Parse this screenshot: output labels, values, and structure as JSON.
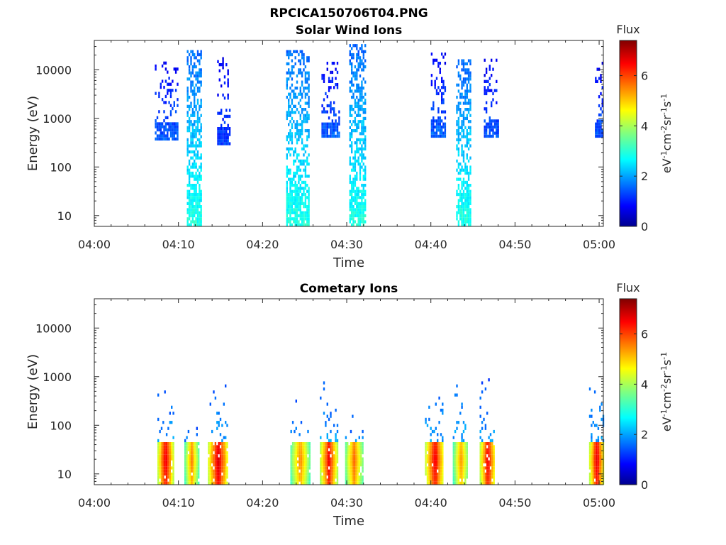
{
  "figure": {
    "title": "RPCICA150706T04.PNG"
  },
  "chart_data": [
    {
      "type": "heatmap",
      "title": "Solar Wind Ions",
      "xlabel": "Time",
      "ylabel": "Energy (eV)",
      "x_ticks": [
        "04:00",
        "04:10",
        "04:20",
        "04:30",
        "04:40",
        "04:50",
        "05:00"
      ],
      "y_ticks": [
        "10",
        "100",
        "1000",
        "10000"
      ],
      "xlim_minutes_after_04_00": [
        0,
        60.5
      ],
      "ylim_eV": [
        6,
        40000
      ],
      "y_scale": "log",
      "colorbar": {
        "title": "Flux",
        "label": "eV-1cm-2sr-1s-1",
        "ticks": [
          "0",
          "2",
          "4",
          "6"
        ],
        "range": [
          0,
          7.4
        ],
        "colormap": "jet"
      },
      "bursts": [
        {
          "start": 7.2,
          "end": 9.8,
          "emin": 350,
          "emax": 13000,
          "peak": 1.6,
          "density": 0.22
        },
        {
          "start": 11.0,
          "end": 12.6,
          "emin": 6,
          "emax": 25000,
          "peak": 3.0,
          "density": 0.55
        },
        {
          "start": 14.6,
          "end": 16.0,
          "emin": 280,
          "emax": 18000,
          "peak": 1.4,
          "density": 0.25
        },
        {
          "start": 22.8,
          "end": 25.5,
          "emin": 6,
          "emax": 25000,
          "peak": 3.0,
          "density": 0.5
        },
        {
          "start": 27.0,
          "end": 29.0,
          "emin": 400,
          "emax": 14000,
          "peak": 1.6,
          "density": 0.22
        },
        {
          "start": 30.3,
          "end": 32.2,
          "emin": 6,
          "emax": 30000,
          "peak": 3.0,
          "density": 0.55
        },
        {
          "start": 40.0,
          "end": 41.8,
          "emin": 400,
          "emax": 20000,
          "peak": 1.6,
          "density": 0.25
        },
        {
          "start": 43.0,
          "end": 44.8,
          "emin": 6,
          "emax": 15000,
          "peak": 3.0,
          "density": 0.5
        },
        {
          "start": 46.3,
          "end": 48.0,
          "emin": 400,
          "emax": 16000,
          "peak": 1.5,
          "density": 0.25
        },
        {
          "start": 59.5,
          "end": 60.5,
          "emin": 400,
          "emax": 15000,
          "peak": 1.5,
          "density": 0.28
        }
      ]
    },
    {
      "type": "heatmap",
      "title": "Cometary Ions",
      "xlabel": "Time",
      "ylabel": "Energy (eV)",
      "x_ticks": [
        "04:00",
        "04:10",
        "04:20",
        "04:30",
        "04:40",
        "04:50",
        "05:00"
      ],
      "y_ticks": [
        "10",
        "100",
        "1000",
        "10000"
      ],
      "xlim_minutes_after_04_00": [
        0,
        60.5
      ],
      "ylim_eV": [
        6,
        40000
      ],
      "y_scale": "log",
      "colorbar": {
        "title": "Flux",
        "label": "eV-1cm-2sr-1s-1",
        "ticks": [
          "0",
          "2",
          "4",
          "6"
        ],
        "range": [
          0,
          7.4
        ],
        "colormap": "jet"
      },
      "bursts": [
        {
          "start": 7.5,
          "end": 9.3,
          "emin": 6,
          "emax": 600,
          "peak": 6.8
        },
        {
          "start": 10.7,
          "end": 12.3,
          "emin": 6,
          "emax": 110,
          "peak": 5.6
        },
        {
          "start": 13.5,
          "end": 15.8,
          "emin": 6,
          "emax": 1000,
          "peak": 6.9
        },
        {
          "start": 23.3,
          "end": 25.5,
          "emin": 6,
          "emax": 400,
          "peak": 5.6
        },
        {
          "start": 26.8,
          "end": 28.8,
          "emin": 6,
          "emax": 900,
          "peak": 6.6
        },
        {
          "start": 29.8,
          "end": 31.8,
          "emin": 6,
          "emax": 200,
          "peak": 5.8
        },
        {
          "start": 39.3,
          "end": 41.5,
          "emin": 6,
          "emax": 1100,
          "peak": 6.7
        },
        {
          "start": 42.6,
          "end": 44.4,
          "emin": 6,
          "emax": 1300,
          "peak": 5.5
        },
        {
          "start": 45.8,
          "end": 47.6,
          "emin": 6,
          "emax": 900,
          "peak": 6.7
        },
        {
          "start": 58.8,
          "end": 60.5,
          "emin": 6,
          "emax": 850,
          "peak": 6.8
        }
      ]
    }
  ]
}
